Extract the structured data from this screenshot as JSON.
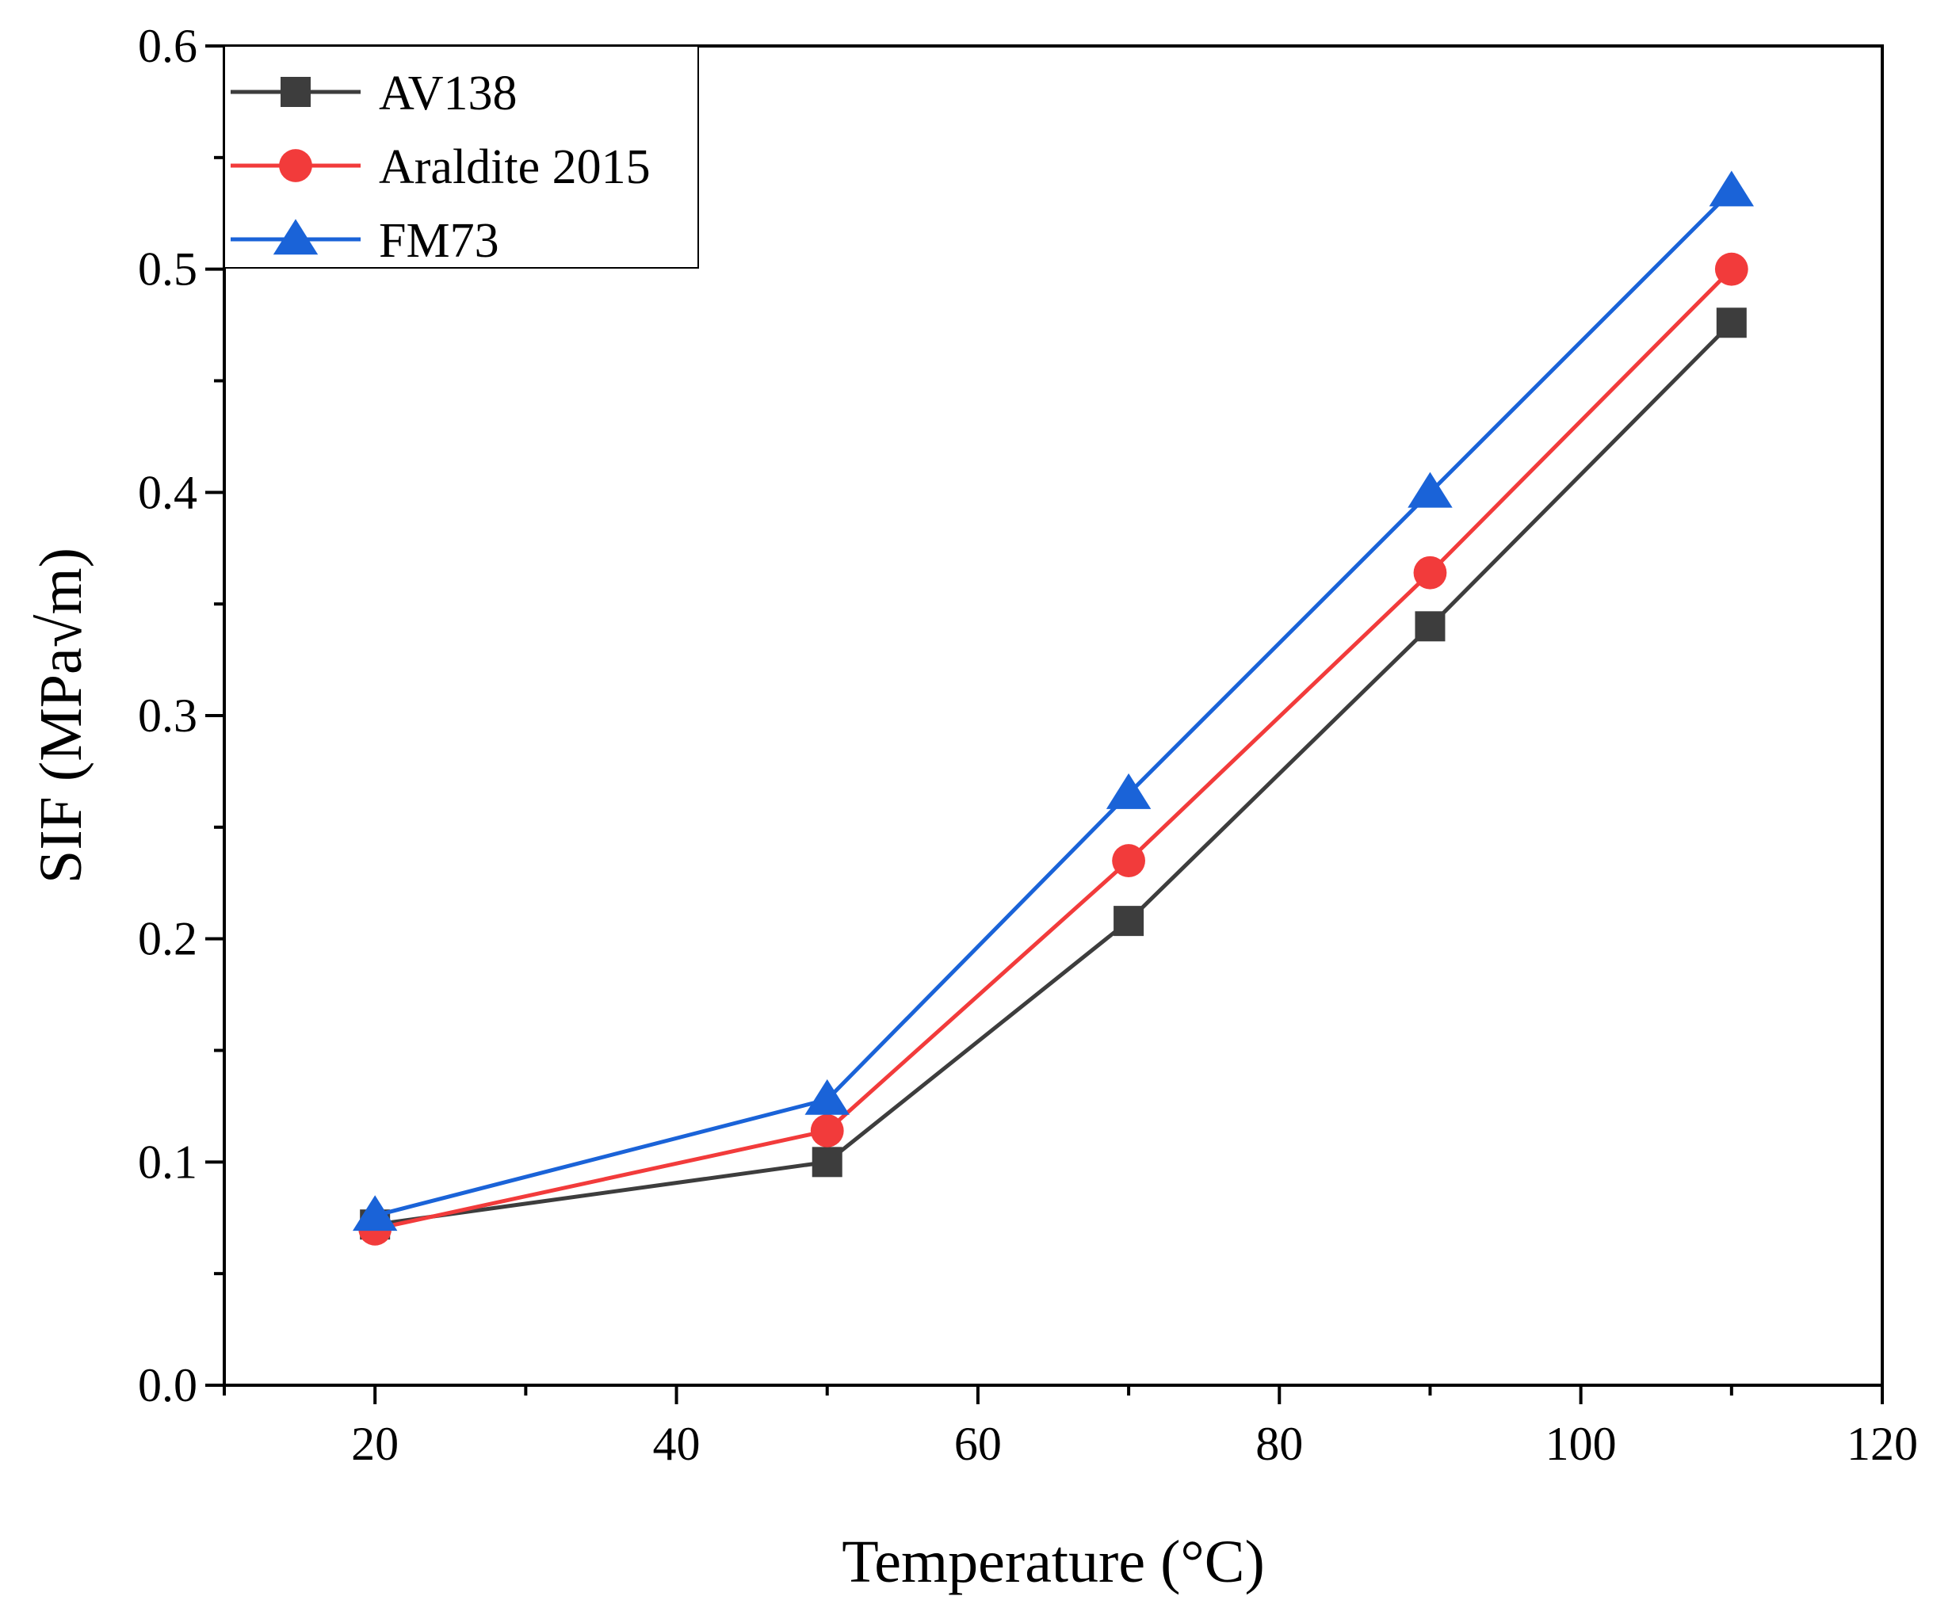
{
  "chart_data": {
    "type": "line",
    "xlabel": "Temperature (°C)",
    "ylabel": "SIF (MPa√m)",
    "xlim": [
      10,
      120
    ],
    "ylim": [
      0,
      0.6
    ],
    "x_ticks": [
      20,
      40,
      60,
      80,
      100,
      120
    ],
    "x_tick_labels": [
      "20",
      "40",
      "60",
      "80",
      "100",
      "120"
    ],
    "x_minor_ticks": [
      10,
      30,
      50,
      70,
      90,
      110
    ],
    "y_ticks": [
      0,
      0.1,
      0.2,
      0.3,
      0.4,
      0.5,
      0.6
    ],
    "y_tick_labels": [
      "0.0",
      "0.1",
      "0.2",
      "0.3",
      "0.4",
      "0.5",
      "0.6"
    ],
    "y_minor_ticks": [
      0.05,
      0.15,
      0.25,
      0.35,
      0.45,
      0.55
    ],
    "grid": false,
    "legend_position": "top-left",
    "x": [
      20,
      50,
      70,
      90,
      110
    ],
    "series": [
      {
        "name": "AV138",
        "values": [
          0.072,
          0.1,
          0.208,
          0.34,
          0.476
        ],
        "color": "#3d3d3d",
        "marker": "square"
      },
      {
        "name": "Araldite 2015",
        "values": [
          0.07,
          0.114,
          0.235,
          0.364,
          0.5
        ],
        "color": "#f23b3b",
        "marker": "circle"
      },
      {
        "name": "FM73",
        "values": [
          0.076,
          0.128,
          0.265,
          0.4,
          0.535
        ],
        "color": "#1a63d8",
        "marker": "triangle"
      }
    ]
  }
}
